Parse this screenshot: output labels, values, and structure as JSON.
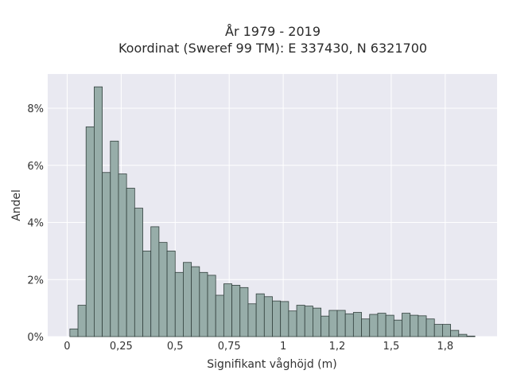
{
  "chart_data": {
    "type": "bar",
    "title_line1": "År 1979 - 2019",
    "title_line2": "Koordinat (Sweref 99 TM): E 337430, N 6321700",
    "xlabel": "Signifikant våghöjd (m)",
    "ylabel": "Andel",
    "x_ticks": [
      {
        "value": 0,
        "label": "0"
      },
      {
        "value": 0.25,
        "label": "0,25"
      },
      {
        "value": 0.5,
        "label": "0,5"
      },
      {
        "value": 0.75,
        "label": "0,75"
      },
      {
        "value": 1,
        "label": "1"
      },
      {
        "value": 1.25,
        "label": "1,2"
      },
      {
        "value": 1.5,
        "label": "1,5"
      },
      {
        "value": 1.75,
        "label": "1,8"
      }
    ],
    "y_ticks": [
      {
        "value": 0,
        "label": "0%"
      },
      {
        "value": 2,
        "label": "2%"
      },
      {
        "value": 4,
        "label": "4%"
      },
      {
        "value": 6,
        "label": "6%"
      },
      {
        "value": 8,
        "label": "8%"
      }
    ],
    "xlim": [
      -0.09,
      1.99
    ],
    "ylim": [
      0,
      9.2
    ],
    "bin_start": 0.0125,
    "bin_width": 0.0375,
    "values": [
      0.27,
      1.1,
      7.35,
      8.75,
      5.75,
      6.85,
      5.7,
      5.2,
      4.5,
      3.0,
      3.85,
      3.3,
      3.0,
      2.25,
      2.6,
      2.45,
      2.25,
      2.15,
      1.45,
      1.85,
      1.8,
      1.72,
      1.15,
      1.5,
      1.4,
      1.25,
      1.23,
      0.9,
      1.1,
      1.07,
      1.0,
      0.72,
      0.92,
      0.92,
      0.8,
      0.85,
      0.62,
      0.78,
      0.82,
      0.75,
      0.58,
      0.82,
      0.75,
      0.73,
      0.62,
      0.43,
      0.43,
      0.22,
      0.08,
      0.02
    ],
    "grid": true,
    "colors": {
      "bar_fill": "#97ada9",
      "bar_edge": "#33413e",
      "plot_bg": "#e9e9f1",
      "grid": "#ffffff"
    }
  }
}
